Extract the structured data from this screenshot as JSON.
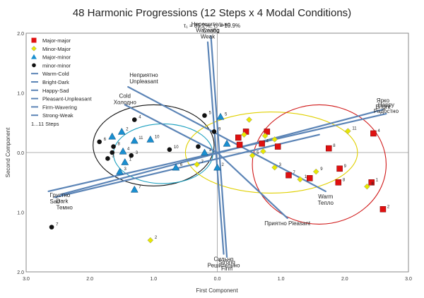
{
  "chart_data": {
    "type": "scatter",
    "title": "48 Harmonic Progressions (12 Steps x 4 Modal Conditions)",
    "subtitle": "τ₁ = 85.2%, τ₂ = 10.9%",
    "xlabel": "First Component",
    "ylabel": "Second Component",
    "xlim": [
      -3.0,
      3.0
    ],
    "ylim": [
      -2.0,
      2.0
    ],
    "xticks": [
      "3.0",
      "2.0",
      "1.0",
      "0.0",
      "1.0",
      "2.0",
      "3.0"
    ],
    "yticks": [
      "2.0",
      "1.0",
      "0.0",
      "1.0",
      "2.0"
    ],
    "legend": {
      "placement": "top-left",
      "entries": [
        "Major-major",
        "Minor-Major",
        "Major-minor",
        "minor-minor",
        "Warm-Cold",
        "Bright-Dark",
        "Happy-Sad",
        "Pleasant-Unpleasant",
        "Firm-Wavering",
        "Strong-Weak"
      ],
      "note": "1...11 Steps"
    },
    "series": [
      {
        "name": "Major-major",
        "marker": "square",
        "color": "#e01010",
        "points": [
          [
            0.45,
            0.35,
            ""
          ],
          [
            0.33,
            0.25,
            ""
          ],
          [
            0.78,
            0.35,
            ""
          ],
          [
            0.7,
            0.15,
            "4"
          ],
          [
            0.95,
            0.1,
            ""
          ],
          [
            0.35,
            0.13,
            ""
          ],
          [
            1.12,
            -0.38,
            "7"
          ],
          [
            1.45,
            -0.43,
            ""
          ],
          [
            1.75,
            0.07,
            "8"
          ],
          [
            1.92,
            -0.27,
            "9"
          ],
          [
            1.9,
            -0.5,
            "8"
          ],
          [
            2.45,
            0.32,
            "4"
          ],
          [
            2.42,
            -0.5,
            "1"
          ],
          [
            2.6,
            -0.95,
            "2"
          ]
        ]
      },
      {
        "name": "Minor-Major",
        "marker": "diamond",
        "color": "#e8e800",
        "points": [
          [
            0.5,
            0.55,
            ""
          ],
          [
            0.42,
            0.3,
            ""
          ],
          [
            0.75,
            0.28,
            ""
          ],
          [
            0.72,
            0.02,
            ""
          ],
          [
            0.9,
            0.22,
            ""
          ],
          [
            0.9,
            -0.25,
            "3"
          ],
          [
            1.3,
            -0.45,
            "1"
          ],
          [
            1.55,
            -0.32,
            "9"
          ],
          [
            2.05,
            0.36,
            "11"
          ],
          [
            2.35,
            -0.57,
            "8"
          ],
          [
            -0.32,
            -0.2,
            "7"
          ],
          [
            0.55,
            -0.05,
            "5"
          ],
          [
            -1.05,
            -1.47,
            "2"
          ]
        ]
      },
      {
        "name": "Major-minor",
        "marker": "triangle",
        "color": "#1a8fd0",
        "points": [
          [
            -1.65,
            0.27,
            ""
          ],
          [
            -1.5,
            0.35,
            "2"
          ],
          [
            -1.3,
            0.2,
            "11"
          ],
          [
            -1.48,
            0.02,
            "4"
          ],
          [
            -1.45,
            -0.16,
            "1"
          ],
          [
            -1.05,
            0.22,
            "10"
          ],
          [
            -0.65,
            -0.25,
            "6"
          ],
          [
            -0.2,
            0.0,
            "1"
          ],
          [
            -1.3,
            -0.62,
            "7"
          ],
          [
            -1.53,
            -0.32,
            "3"
          ],
          [
            0.05,
            0.6,
            "5"
          ],
          [
            0.0,
            -0.25,
            "2"
          ],
          [
            0.15,
            0.15,
            ""
          ]
        ]
      },
      {
        "name": "minor-minor",
        "marker": "circle",
        "color": "#111111",
        "points": [
          [
            -1.3,
            0.55,
            "4"
          ],
          [
            -1.85,
            0.18,
            "6"
          ],
          [
            -1.63,
            0.1,
            "8"
          ],
          [
            -1.65,
            0.0,
            ""
          ],
          [
            -1.72,
            -0.1,
            "3"
          ],
          [
            -1.35,
            -0.05,
            "3"
          ],
          [
            -0.75,
            0.05,
            "10"
          ],
          [
            -0.2,
            0.62,
            "5"
          ],
          [
            -0.3,
            0.1,
            ""
          ],
          [
            -0.05,
            0.35,
            "9"
          ],
          [
            -2.6,
            -1.25,
            "7"
          ]
        ]
      }
    ],
    "vectors": [
      {
        "name": "Warm-Cold",
        "start": [
          -2.55,
          -0.75
        ],
        "end": [
          1.6,
          0.3
        ],
        "label_start": "Dark\nТемно",
        "label_end": ""
      },
      {
        "name": "Bright-Dark",
        "start": [
          -2.45,
          -0.7
        ],
        "end": [
          2.6,
          0.72
        ],
        "label_start": "",
        "label_end": "Ярко\nBright"
      },
      {
        "name": "Happy-Sad",
        "start": [
          -2.65,
          -0.65
        ],
        "end": [
          2.65,
          0.65
        ],
        "label_start": "Грустно\nSad",
        "label_end": "Happy\nРадостно"
      },
      {
        "name": "Pleasant-Unpleasant",
        "start": [
          -1.4,
          1.1
        ],
        "end": [
          1.7,
          -0.65
        ],
        "label_start": "Неприятно\nUnpleasant",
        "label_end": "Warm\nТепло"
      },
      {
        "name": "Firm-Wavering",
        "start": [
          -0.1,
          1.95
        ],
        "end": [
          0.15,
          -1.75
        ],
        "label_start": "Нерешительно\nСлабо",
        "label_end": "Strong\nFirm"
      },
      {
        "name": "Strong-Weak",
        "start": [
          -0.15,
          1.85
        ],
        "end": [
          0.1,
          -1.7
        ],
        "label_start": "Wavering\nWeak",
        "label_end": "Сильно\nРешительно"
      },
      {
        "name": "Pleasant",
        "start": [
          0.0,
          0.0
        ],
        "end": [
          1.1,
          -1.1
        ],
        "label_start": "",
        "label_end": "Приятно Pleasant"
      },
      {
        "name": "Cold",
        "start": [
          0.0,
          0.0
        ],
        "end": [
          -1.45,
          0.8
        ],
        "label_start": "",
        "label_end": "Cold\nХолодно"
      }
    ],
    "ellipses": [
      {
        "color": "#111111",
        "center": [
          -1.0,
          0.12
        ],
        "rx": 0.95,
        "ry": 0.68
      },
      {
        "color": "#1a9fbf",
        "center": [
          -0.85,
          -0.02
        ],
        "rx": 0.78,
        "ry": 0.5
      },
      {
        "color": "#e0d000",
        "center": [
          0.85,
          0.0
        ],
        "rx": 1.35,
        "ry": 0.68
      },
      {
        "color": "#d01818",
        "center": [
          1.6,
          -0.2
        ],
        "rx": 1.05,
        "ry": 1.0
      }
    ]
  }
}
